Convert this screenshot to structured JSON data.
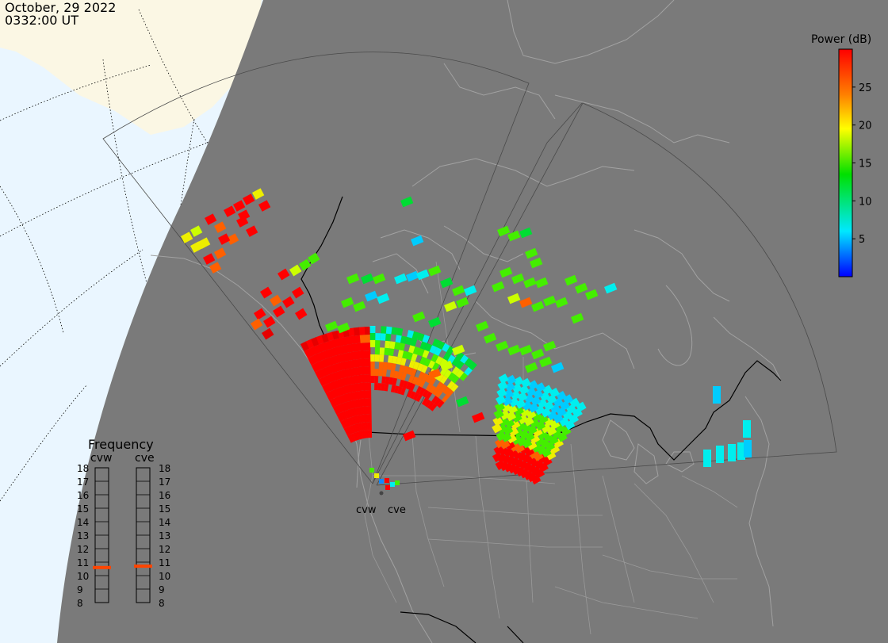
{
  "timestamp": {
    "date": "October, 29 2022",
    "time": "0332:00 UT"
  },
  "radars": [
    {
      "code": "cvw"
    },
    {
      "code": "cve"
    }
  ],
  "colorbar": {
    "title": "Power (dB)",
    "ticks": [
      25,
      20,
      15,
      10,
      5
    ],
    "range": [
      0,
      30
    ],
    "colors": [
      "#0000ff",
      "#00e8ff",
      "#00e000",
      "#ffff00",
      "#ff8000",
      "#ff0000"
    ]
  },
  "frequency": {
    "title": "Frequency",
    "columns": [
      "cvw",
      "cve"
    ],
    "ticks": [
      18,
      17,
      16,
      15,
      14,
      13,
      12,
      11,
      10,
      9,
      8
    ],
    "range": [
      8,
      18
    ],
    "current": {
      "cvw": 10.6,
      "cve": 10.7
    },
    "marker_color": "#ff4500"
  },
  "colors": {
    "night": "#7a7a7a",
    "day_ocean": "#eaf6ff",
    "day_land": "#fbf7e4",
    "coast": "#a2a2a2",
    "border": "#000000",
    "fov": "#4a4a4a"
  }
}
